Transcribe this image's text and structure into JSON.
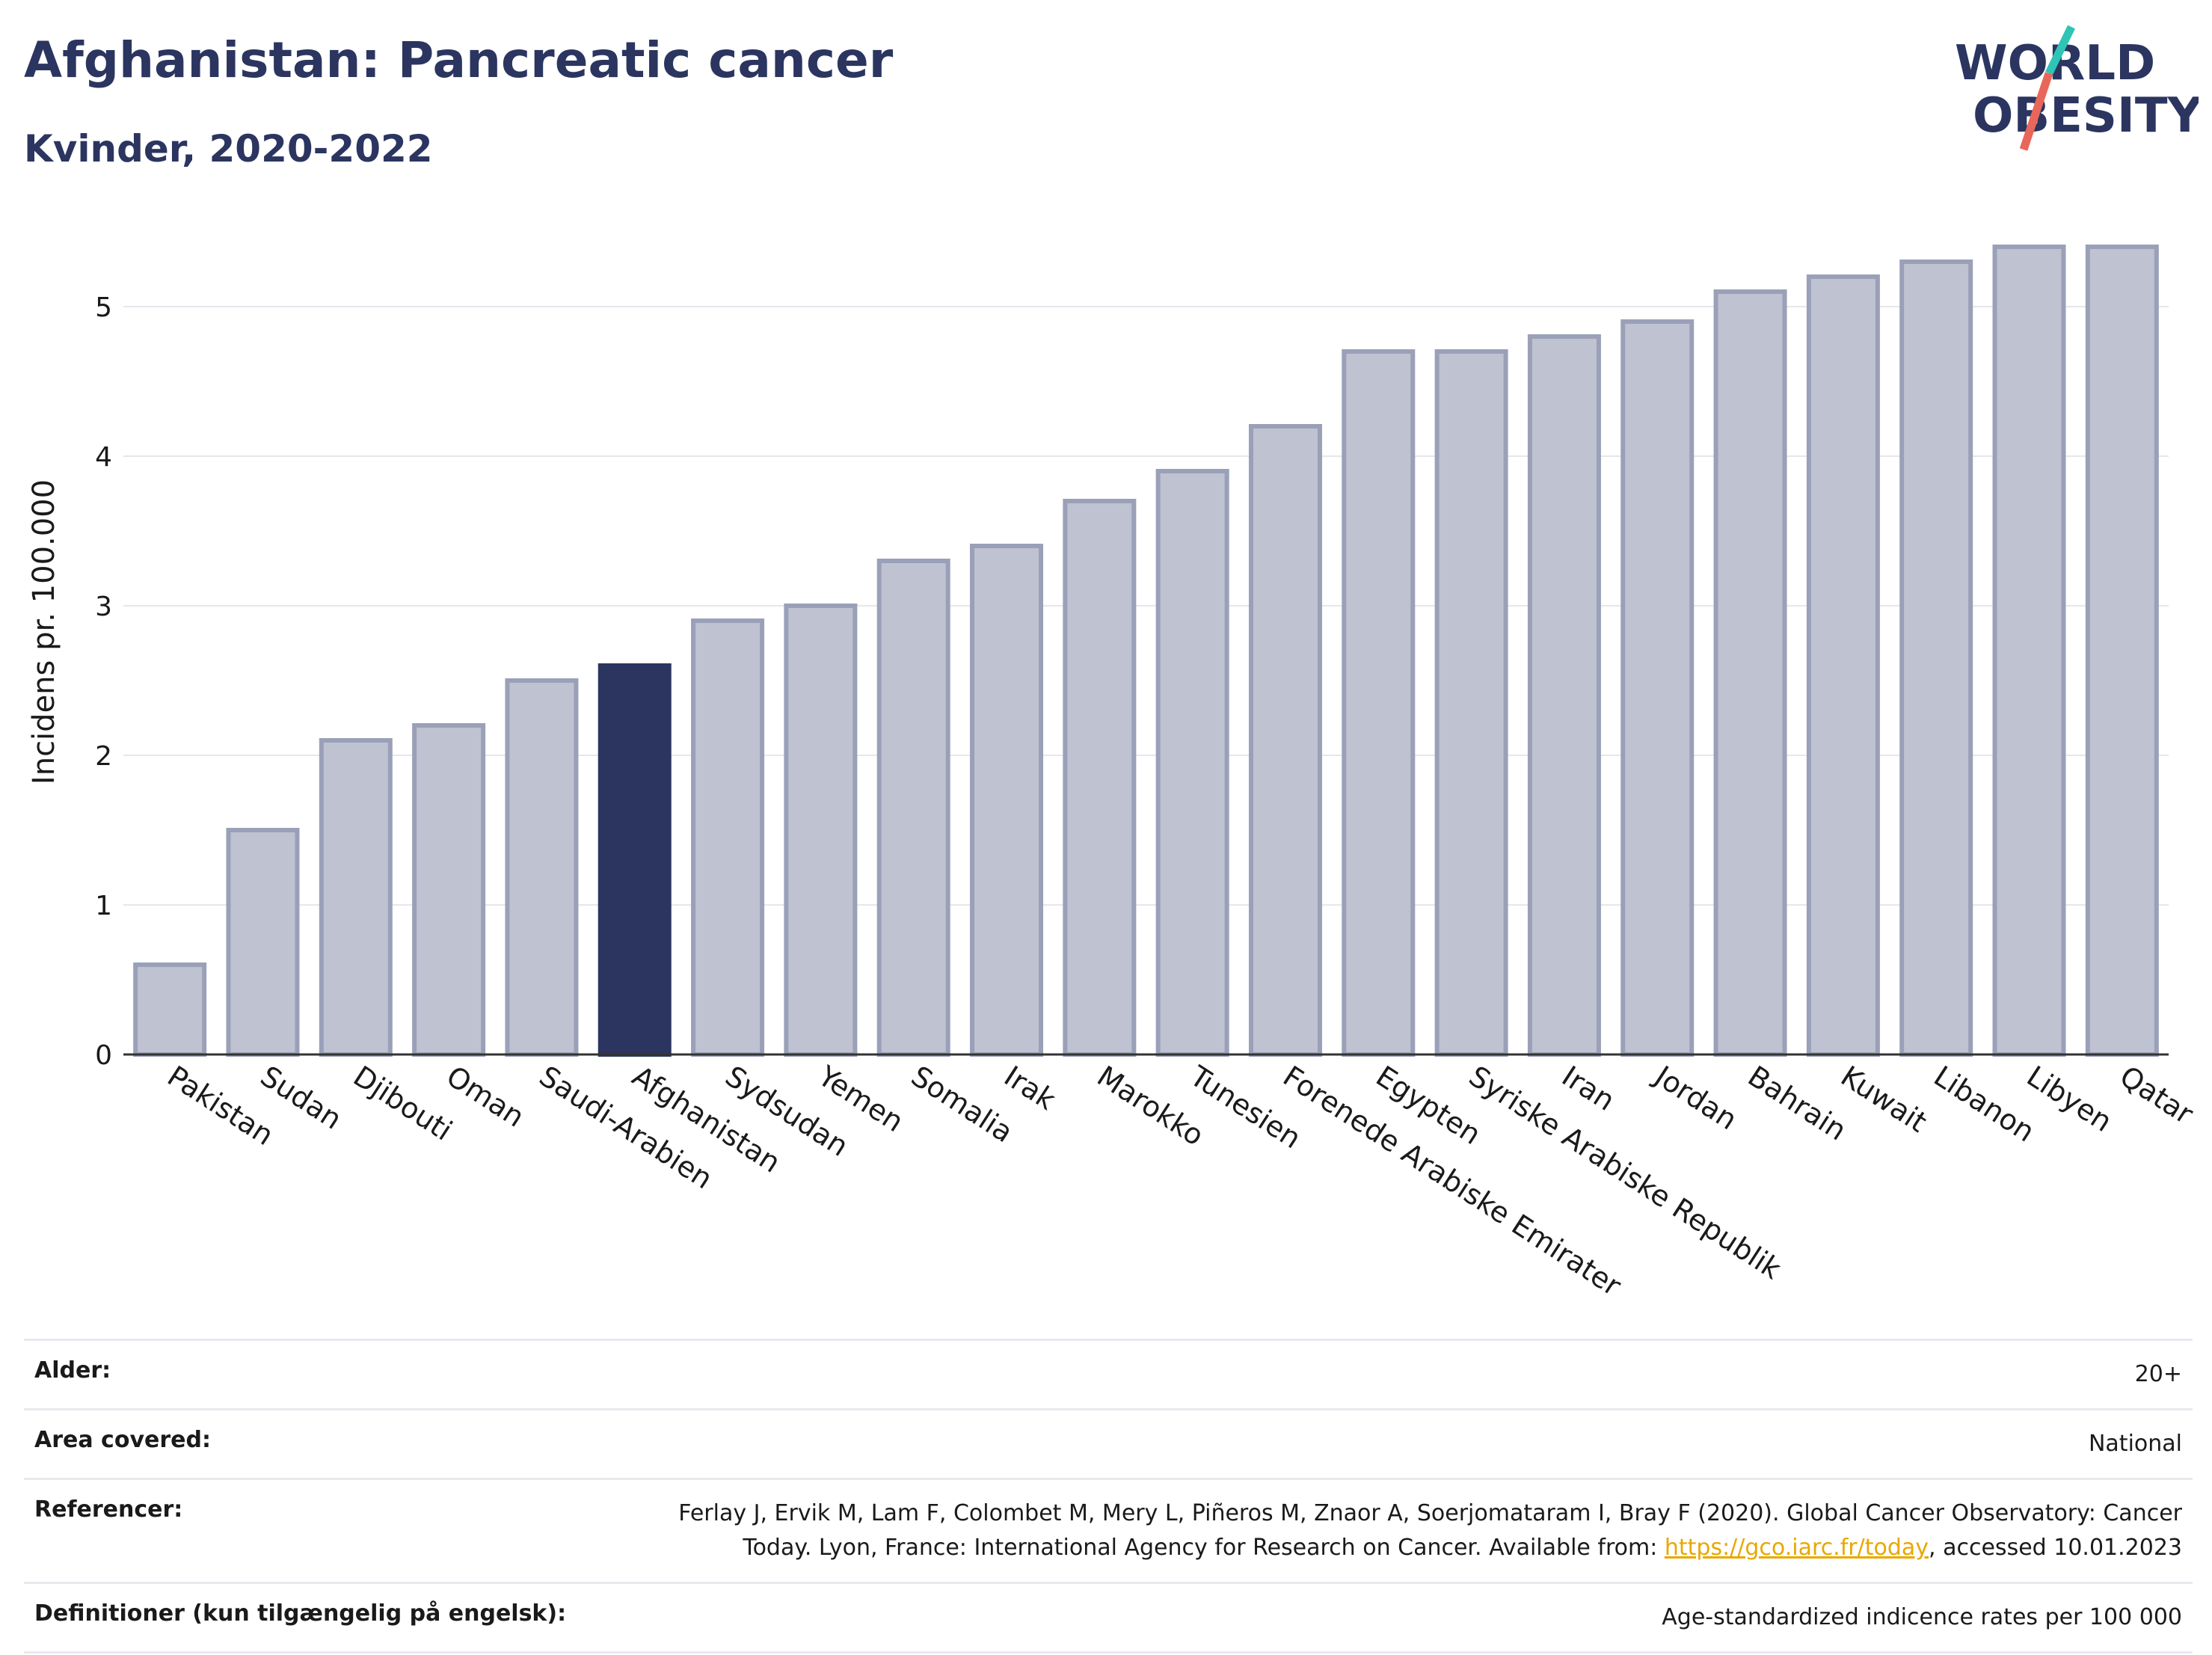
{
  "header": {
    "title": "Afghanistan: Pancreatic cancer",
    "subtitle": "Kvinder, 2020-2022"
  },
  "logo": {
    "line1": "WORLD",
    "line2": "OBESITY",
    "colors": {
      "text": "#2b3560",
      "slash_teal": "#2ec4b6",
      "slash_coral": "#e8675a"
    }
  },
  "colors": {
    "bar": "#bfc2d0",
    "bar_border": "#9aa0b8",
    "highlight": "#2b3560",
    "grid": "#e6e6ec",
    "axis": "#333333"
  },
  "chart_data": {
    "type": "bar",
    "title": "Afghanistan: Pancreatic cancer",
    "subtitle": "Kvinder, 2020-2022",
    "xlabel": "",
    "ylabel": "Incidens pr. 100.000",
    "ylim": [
      0,
      5.5
    ],
    "yticks": [
      0,
      1,
      2,
      3,
      4,
      5
    ],
    "grid": true,
    "highlight": "Afghanistan",
    "categories": [
      "Pakistan",
      "Sudan",
      "Djibouti",
      "Oman",
      "Saudi-Arabien",
      "Afghanistan",
      "Sydsudan",
      "Yemen",
      "Somalia",
      "Irak",
      "Marokko",
      "Tunesien",
      "Forenede Arabiske Emirater",
      "Egypten",
      "Syriske Arabiske Republik",
      "Iran",
      "Jordan",
      "Bahrain",
      "Kuwait",
      "Libanon",
      "Libyen",
      "Qatar"
    ],
    "values": [
      0.6,
      1.5,
      2.1,
      2.2,
      2.5,
      2.6,
      2.9,
      3.0,
      3.3,
      3.4,
      3.7,
      3.9,
      4.2,
      4.7,
      4.7,
      4.8,
      4.9,
      5.1,
      5.2,
      5.3,
      5.4,
      5.4
    ]
  },
  "info_table": [
    {
      "key": "Alder:",
      "value": "20+"
    },
    {
      "key": "Area covered:",
      "value": "National"
    },
    {
      "key": "Referencer:",
      "value_pre": "Ferlay J, Ervik M, Lam F, Colombet M, Mery L, Piñeros M, Znaor A, Soerjomataram I, Bray F (2020). Global Cancer Observatory: Cancer Today. Lyon, France: International Agency for Research on Cancer. Available from: ",
      "link": "https://gco.iarc.fr/today",
      "value_post": ", accessed 10.01.2023"
    },
    {
      "key": "Definitioner (kun tilgængelig på engelsk):",
      "value": "Age-standardized indicence rates per 100 000"
    }
  ]
}
